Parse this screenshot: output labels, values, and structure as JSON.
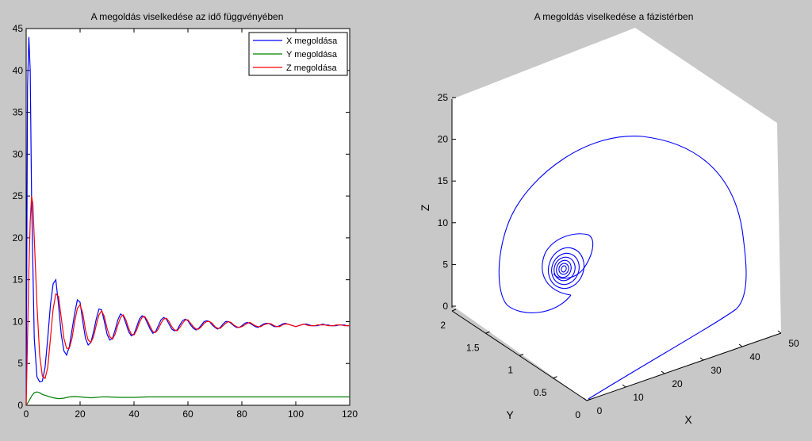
{
  "figure": {
    "background": "#c8c8c8"
  },
  "chart_data": [
    {
      "type": "line",
      "title": "A megoldás viselkedése az idő függvényében",
      "xlabel": "",
      "ylabel": "",
      "xlim": [
        0,
        120
      ],
      "ylim": [
        0,
        45
      ],
      "xticks": [
        "0",
        "20",
        "40",
        "60",
        "80",
        "100",
        "120"
      ],
      "yticks": [
        "0",
        "5",
        "10",
        "15",
        "20",
        "25",
        "30",
        "35",
        "40",
        "45"
      ],
      "grid": false,
      "legend_position": "top-right",
      "series": [
        {
          "name": "X megoldása",
          "color": "#0000ff",
          "points": [
            [
              0,
              0
            ],
            [
              0.5,
              38
            ],
            [
              1,
              44
            ],
            [
              1.5,
              40
            ],
            [
              2,
              25
            ],
            [
              3,
              8
            ],
            [
              4,
              3.4
            ],
            [
              5,
              2.8
            ],
            [
              6,
              2.9
            ],
            [
              7,
              4.5
            ],
            [
              8,
              8
            ],
            [
              9,
              12
            ],
            [
              10,
              14.5
            ],
            [
              11,
              15
            ],
            [
              12,
              12
            ],
            [
              13,
              8.5
            ],
            [
              14,
              6.5
            ],
            [
              15,
              6.0
            ],
            [
              16,
              7
            ],
            [
              17,
              9
            ],
            [
              18,
              11
            ],
            [
              19,
              12.6
            ],
            [
              20,
              12.3
            ],
            [
              21,
              10
            ],
            [
              22,
              8
            ],
            [
              23,
              7.2
            ],
            [
              24,
              7.5
            ],
            [
              25,
              8.8
            ],
            [
              26,
              10.3
            ],
            [
              27,
              11.5
            ],
            [
              28,
              11.4
            ],
            [
              29,
              10
            ],
            [
              30,
              8.5
            ],
            [
              31,
              7.8
            ],
            [
              32,
              8
            ],
            [
              33,
              9
            ],
            [
              34,
              10.2
            ],
            [
              35,
              10.9
            ],
            [
              36,
              10.7
            ],
            [
              37,
              9.8
            ],
            [
              38,
              8.8
            ],
            [
              39,
              8.3
            ],
            [
              40,
              8.5
            ],
            [
              41,
              9.4
            ],
            [
              42,
              10.3
            ],
            [
              43,
              10.7
            ],
            [
              44,
              10.5
            ],
            [
              45,
              9.8
            ],
            [
              46,
              9.1
            ],
            [
              47,
              8.6
            ],
            [
              48,
              8.8
            ],
            [
              49,
              9.5
            ],
            [
              50,
              10.2
            ],
            [
              51,
              10.5
            ],
            [
              52,
              10.3
            ],
            [
              53,
              9.7
            ],
            [
              54,
              9.1
            ],
            [
              55,
              8.9
            ],
            [
              56,
              9
            ],
            [
              57,
              9.6
            ],
            [
              58,
              10.1
            ],
            [
              59,
              10.3
            ],
            [
              60,
              10.1
            ],
            [
              61,
              9.6
            ],
            [
              62,
              9.2
            ],
            [
              63,
              9.0
            ],
            [
              64,
              9.2
            ],
            [
              65,
              9.6
            ],
            [
              66,
              10.0
            ],
            [
              67,
              10.1
            ],
            [
              68,
              10.0
            ],
            [
              69,
              9.6
            ],
            [
              70,
              9.3
            ],
            [
              71,
              9.1
            ],
            [
              72,
              9.3
            ],
            [
              73,
              9.7
            ],
            [
              74,
              10.0
            ],
            [
              75,
              10.0
            ],
            [
              76,
              9.8
            ],
            [
              77,
              9.5
            ],
            [
              78,
              9.3
            ],
            [
              79,
              9.3
            ],
            [
              80,
              9.5
            ],
            [
              81,
              9.8
            ],
            [
              82,
              9.9
            ],
            [
              83,
              9.8
            ],
            [
              84,
              9.6
            ],
            [
              85,
              9.4
            ],
            [
              86,
              9.3
            ],
            [
              87,
              9.5
            ],
            [
              88,
              9.7
            ],
            [
              89,
              9.8
            ],
            [
              90,
              9.8
            ],
            [
              91,
              9.6
            ],
            [
              92,
              9.4
            ],
            [
              93,
              9.4
            ],
            [
              94,
              9.5
            ],
            [
              95,
              9.7
            ],
            [
              96,
              9.8
            ],
            [
              97,
              9.7
            ],
            [
              98,
              9.6
            ],
            [
              99,
              9.5
            ],
            [
              100,
              9.4
            ],
            [
              101,
              9.5
            ],
            [
              102,
              9.6
            ],
            [
              103,
              9.7
            ],
            [
              104,
              9.7
            ],
            [
              105,
              9.6
            ],
            [
              106,
              9.5
            ],
            [
              107,
              9.5
            ],
            [
              108,
              9.5
            ],
            [
              109,
              9.6
            ],
            [
              110,
              9.7
            ],
            [
              111,
              9.6
            ],
            [
              112,
              9.6
            ],
            [
              113,
              9.5
            ],
            [
              114,
              9.5
            ],
            [
              115,
              9.5
            ],
            [
              116,
              9.6
            ],
            [
              117,
              9.6
            ],
            [
              118,
              9.6
            ],
            [
              119,
              9.5
            ],
            [
              120,
              9.5
            ]
          ]
        },
        {
          "name": "Y megoldása",
          "color": "#008000",
          "points": [
            [
              0,
              0
            ],
            [
              1,
              0.5
            ],
            [
              2,
              1.1
            ],
            [
              3,
              1.5
            ],
            [
              4,
              1.6
            ],
            [
              5,
              1.5
            ],
            [
              6,
              1.3
            ],
            [
              8,
              1.1
            ],
            [
              10,
              0.9
            ],
            [
              12,
              0.8
            ],
            [
              14,
              0.85
            ],
            [
              16,
              1.0
            ],
            [
              18,
              1.05
            ],
            [
              20,
              1.0
            ],
            [
              22,
              0.95
            ],
            [
              24,
              0.9
            ],
            [
              26,
              0.95
            ],
            [
              28,
              1.0
            ],
            [
              30,
              1.0
            ],
            [
              35,
              0.95
            ],
            [
              40,
              0.95
            ],
            [
              45,
              1.0
            ],
            [
              50,
              1.0
            ],
            [
              60,
              1.0
            ],
            [
              80,
              1.0
            ],
            [
              100,
              1.0
            ],
            [
              120,
              1.0
            ]
          ]
        },
        {
          "name": "Z megoldása",
          "color": "#ff0000",
          "points": [
            [
              0,
              0
            ],
            [
              0.5,
              8
            ],
            [
              1,
              16
            ],
            [
              1.5,
              22
            ],
            [
              2,
              25
            ],
            [
              2.5,
              24
            ],
            [
              3,
              20
            ],
            [
              4,
              12
            ],
            [
              5,
              6
            ],
            [
              6,
              3.5
            ],
            [
              7,
              3.2
            ],
            [
              8,
              4.5
            ],
            [
              9,
              8
            ],
            [
              10,
              11.5
            ],
            [
              11,
              13.3
            ],
            [
              12,
              13
            ],
            [
              13,
              10.5
            ],
            [
              14,
              8
            ],
            [
              15,
              6.8
            ],
            [
              16,
              6.8
            ],
            [
              17,
              8
            ],
            [
              18,
              10
            ],
            [
              19,
              11.6
            ],
            [
              20,
              12
            ],
            [
              21,
              11
            ],
            [
              22,
              9
            ],
            [
              23,
              7.8
            ],
            [
              24,
              7.5
            ],
            [
              25,
              8.2
            ],
            [
              26,
              9.6
            ],
            [
              27,
              10.8
            ],
            [
              28,
              11.3
            ],
            [
              29,
              10.6
            ],
            [
              30,
              9.2
            ],
            [
              31,
              8.2
            ],
            [
              32,
              7.9
            ],
            [
              33,
              8.5
            ],
            [
              34,
              9.6
            ],
            [
              35,
              10.5
            ],
            [
              36,
              10.8
            ],
            [
              37,
              10.2
            ],
            [
              38,
              9.2
            ],
            [
              39,
              8.5
            ],
            [
              40,
              8.4
            ],
            [
              41,
              9
            ],
            [
              42,
              9.9
            ],
            [
              43,
              10.5
            ],
            [
              44,
              10.6
            ],
            [
              45,
              10.1
            ],
            [
              46,
              9.4
            ],
            [
              47,
              8.8
            ],
            [
              48,
              8.7
            ],
            [
              49,
              9.1
            ],
            [
              50,
              9.8
            ],
            [
              51,
              10.3
            ],
            [
              52,
              10.4
            ],
            [
              53,
              10.0
            ],
            [
              54,
              9.4
            ],
            [
              55,
              9.0
            ],
            [
              56,
              8.9
            ],
            [
              57,
              9.3
            ],
            [
              58,
              9.8
            ],
            [
              59,
              10.2
            ],
            [
              60,
              10.2
            ],
            [
              61,
              9.8
            ],
            [
              62,
              9.4
            ],
            [
              63,
              9.1
            ],
            [
              64,
              9.1
            ],
            [
              65,
              9.4
            ],
            [
              66,
              9.8
            ],
            [
              67,
              10.0
            ],
            [
              68,
              10.0
            ],
            [
              69,
              9.8
            ],
            [
              70,
              9.4
            ],
            [
              71,
              9.2
            ],
            [
              72,
              9.2
            ],
            [
              73,
              9.5
            ],
            [
              74,
              9.8
            ],
            [
              75,
              10.0
            ],
            [
              76,
              9.9
            ],
            [
              77,
              9.6
            ],
            [
              78,
              9.4
            ],
            [
              79,
              9.3
            ],
            [
              80,
              9.4
            ],
            [
              81,
              9.6
            ],
            [
              82,
              9.8
            ],
            [
              83,
              9.9
            ],
            [
              84,
              9.7
            ],
            [
              85,
              9.5
            ],
            [
              86,
              9.4
            ],
            [
              87,
              9.4
            ],
            [
              88,
              9.6
            ],
            [
              89,
              9.7
            ],
            [
              90,
              9.8
            ],
            [
              91,
              9.7
            ],
            [
              92,
              9.5
            ],
            [
              93,
              9.4
            ],
            [
              94,
              9.4
            ],
            [
              95,
              9.6
            ],
            [
              96,
              9.7
            ],
            [
              97,
              9.7
            ],
            [
              98,
              9.6
            ],
            [
              99,
              9.5
            ],
            [
              100,
              9.4
            ],
            [
              101,
              9.5
            ],
            [
              102,
              9.6
            ],
            [
              103,
              9.7
            ],
            [
              104,
              9.6
            ],
            [
              105,
              9.5
            ],
            [
              106,
              9.5
            ],
            [
              107,
              9.5
            ],
            [
              108,
              9.6
            ],
            [
              109,
              9.6
            ],
            [
              110,
              9.6
            ],
            [
              111,
              9.6
            ],
            [
              112,
              9.5
            ],
            [
              113,
              9.5
            ],
            [
              114,
              9.5
            ],
            [
              115,
              9.6
            ],
            [
              116,
              9.6
            ],
            [
              117,
              9.6
            ],
            [
              118,
              9.5
            ],
            [
              119,
              9.5
            ],
            [
              120,
              9.5
            ]
          ]
        }
      ]
    },
    {
      "type": "line",
      "subtype": "3d-phase-trajectory",
      "title": "A megoldás viselkedése a fázistérben",
      "xlabel": "X",
      "ylabel": "Y",
      "zlabel": "Z",
      "xlim": [
        0,
        50
      ],
      "ylim": [
        0,
        2
      ],
      "zlim": [
        0,
        25
      ],
      "xticks": [
        "0",
        "10",
        "20",
        "30",
        "40",
        "50"
      ],
      "yticks": [
        "0",
        "0.5",
        "1",
        "1.5",
        "2"
      ],
      "zticks": [
        "0",
        "5",
        "10",
        "15",
        "20",
        "25"
      ],
      "grid": false,
      "series": [
        {
          "name": "",
          "color": "#0000ff",
          "trajectory": {
            "start": [
              0,
              0,
              0
            ],
            "fixed_point": [
              9.5,
              1.0,
              9.5
            ],
            "outer_loop_extent": {
              "x_max": 44,
              "z_max": 25
            }
          }
        }
      ]
    }
  ]
}
